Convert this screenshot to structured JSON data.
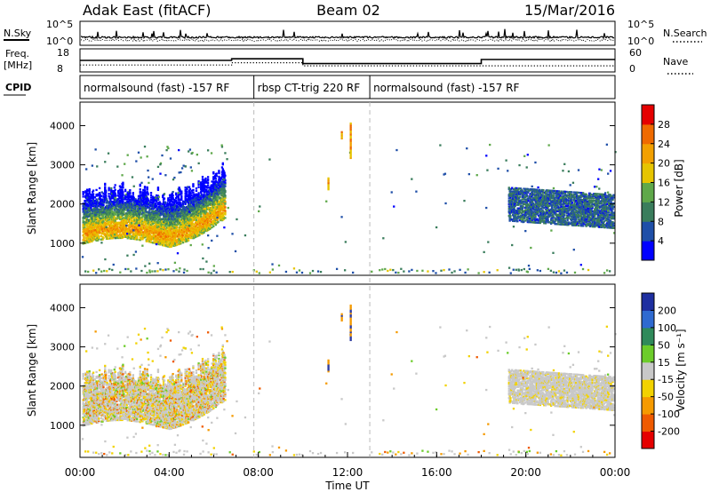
{
  "header": {
    "radar": "Adak East (fitACF)",
    "beam": "Beam 02",
    "date": "15/Mar/2016"
  },
  "chart_data": [
    {
      "type": "line",
      "name": "noise-panel",
      "left_label": "N.Sky",
      "right_label": "N.Search",
      "ytick_labels": [
        "10^5",
        "10^0"
      ],
      "ylog": true
    },
    {
      "type": "line",
      "name": "freq-nave-panel",
      "left_label_line1": "Freq.",
      "left_label_line2": "[MHz]",
      "right_label": "Nave",
      "left_ticks": [
        "18",
        "8"
      ],
      "right_ticks": [
        "60",
        "0"
      ],
      "freq_segments": [
        {
          "from": 0,
          "to": 6.8,
          "value": 13.0
        },
        {
          "from": 6.8,
          "to": 10.0,
          "value": 13.7
        },
        {
          "from": 10.0,
          "to": 18.0,
          "value": 11.6
        },
        {
          "from": 18.0,
          "to": 24.0,
          "value": 13.4
        }
      ],
      "nave_segments": [
        {
          "from": 0,
          "to": 6.8,
          "value": 18
        },
        {
          "from": 6.8,
          "to": 10.0,
          "value": 24
        },
        {
          "from": 10.0,
          "to": 24.0,
          "value": 16
        }
      ]
    },
    {
      "type": "table",
      "name": "cpid-panel",
      "label": "CPID",
      "segments": [
        {
          "from": 0,
          "to": 7.8,
          "text": "normalsound (fast) -157 RF"
        },
        {
          "from": 7.8,
          "to": 13.0,
          "text": "rbsp CT-trig 220 RF"
        },
        {
          "from": 13.0,
          "to": 24.0,
          "text": "normalsound (fast) -157 RF"
        }
      ]
    },
    {
      "type": "heatmap",
      "name": "power-panel",
      "ylabel": "Slant Range [km]",
      "ylim": [
        180,
        4600
      ],
      "yticks": [
        1000,
        2000,
        3000,
        4000
      ],
      "colorbar_label": "Power [dB]",
      "colorbar_ticks": [
        4,
        8,
        12,
        16,
        20,
        24,
        28
      ],
      "colorbar_colors": [
        "#0000ff",
        "#1f4fa8",
        "#3a7d5c",
        "#5fa84a",
        "#e6c400",
        "#f2a000",
        "#ef6a00",
        "#e50000"
      ]
    },
    {
      "type": "heatmap",
      "name": "velocity-panel",
      "ylabel": "Slant Range [km]",
      "ylim": [
        180,
        4600
      ],
      "yticks": [
        1000,
        2000,
        3000,
        4000
      ],
      "xlabel": "Time UT",
      "xlim_hours": [
        0,
        24
      ],
      "xtick_labels": [
        "00:00",
        "04:00",
        "08:00",
        "12:00",
        "16:00",
        "20:00",
        "00:00"
      ],
      "colorbar_label": "Velocity [m s⁻¹]",
      "colorbar_ticks": [
        "200",
        "100",
        "50",
        "15",
        "-15",
        "-50",
        "-100",
        "-200"
      ],
      "colorbar_colors": [
        "#1e2fa0",
        "#2f6ad0",
        "#2f8a5a",
        "#6ccc2a",
        "#c8c8c8",
        "#f2d200",
        "#f59a00",
        "#ef5a00",
        "#e50000"
      ]
    }
  ]
}
